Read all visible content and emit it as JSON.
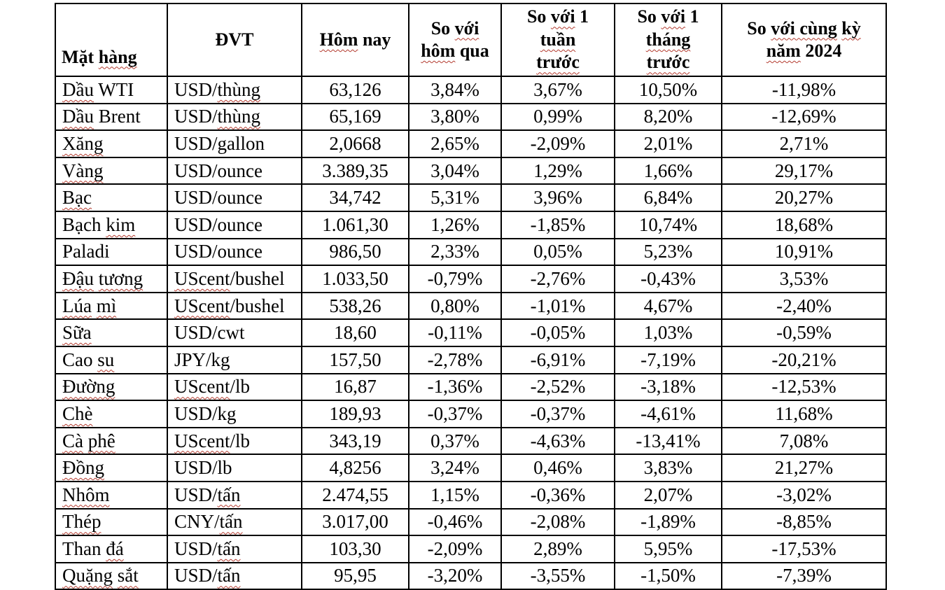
{
  "colors": {
    "squiggle": "#b33a2e",
    "text": "#000000",
    "grid": "#000000",
    "background": "#ffffff"
  },
  "table": {
    "columns": [
      {
        "id": "name",
        "label_text": "Mặt hàng",
        "segments": [
          [
            "Mặt ",
            false
          ],
          [
            "hàng",
            true
          ]
        ]
      },
      {
        "id": "unit",
        "label_text": "ĐVT",
        "segments": [
          [
            "ĐVT",
            false
          ]
        ]
      },
      {
        "id": "today",
        "label_text": "Hôm nay",
        "segments": [
          [
            "Hôm",
            true
          ],
          [
            " nay",
            false
          ]
        ]
      },
      {
        "id": "vs_yesterday",
        "label_text": "So với hôm qua",
        "segments": [
          [
            "So ",
            false
          ],
          [
            "với",
            true
          ],
          [
            "\n",
            false
          ],
          [
            "hôm",
            true
          ],
          [
            " qua",
            false
          ]
        ]
      },
      {
        "id": "vs_week",
        "label_text": "So với 1 tuần trước",
        "segments": [
          [
            "So ",
            false
          ],
          [
            "với",
            true
          ],
          [
            " 1",
            false
          ],
          [
            "\n",
            false
          ],
          [
            "tuần",
            true
          ],
          [
            "\n",
            false
          ],
          [
            "trước",
            true
          ]
        ]
      },
      {
        "id": "vs_month",
        "label_text": "So với 1 tháng trước",
        "segments": [
          [
            "So ",
            false
          ],
          [
            "với",
            true
          ],
          [
            " 1",
            false
          ],
          [
            "\n",
            false
          ],
          [
            "tháng",
            true
          ],
          [
            "\n",
            false
          ],
          [
            "trước",
            true
          ]
        ]
      },
      {
        "id": "vs_2024",
        "label_text": "So với cùng kỳ năm 2024",
        "segments": [
          [
            "So ",
            false
          ],
          [
            "với cùng",
            true
          ],
          [
            " ",
            false
          ],
          [
            "kỳ",
            true
          ],
          [
            "\n",
            false
          ],
          [
            "năm",
            true
          ],
          [
            " 2024",
            false
          ]
        ]
      }
    ],
    "rows": [
      {
        "name_text": "Dầu WTI",
        "name": [
          [
            "Dầu",
            true
          ],
          [
            " WTI",
            false
          ]
        ],
        "unit_text": "USD/thùng",
        "unit": [
          [
            "USD/",
            false
          ],
          [
            "thùng",
            true
          ]
        ],
        "values": [
          "63,126",
          "3,84%",
          "3,67%",
          "10,50%",
          "-11,98%"
        ]
      },
      {
        "name_text": "Dầu Brent",
        "name": [
          [
            "Dầu",
            true
          ],
          [
            " Brent",
            false
          ]
        ],
        "unit_text": "USD/thùng",
        "unit": [
          [
            "USD/",
            false
          ],
          [
            "thùng",
            true
          ]
        ],
        "values": [
          "65,169",
          "3,80%",
          "0,99%",
          "8,20%",
          "-12,69%"
        ]
      },
      {
        "name_text": "Xăng",
        "name": [
          [
            "Xăng",
            true
          ]
        ],
        "unit_text": "USD/gallon",
        "unit": [
          [
            "USD/gallon",
            false
          ]
        ],
        "values": [
          "2,0668",
          "2,65%",
          "-2,09%",
          "2,01%",
          "2,71%"
        ]
      },
      {
        "name_text": "Vàng",
        "name": [
          [
            "Vàng",
            true
          ]
        ],
        "unit_text": "USD/ounce",
        "unit": [
          [
            "USD/ounce",
            false
          ]
        ],
        "values": [
          "3.389,35",
          "3,04%",
          "1,29%",
          "1,66%",
          "29,17%"
        ]
      },
      {
        "name_text": "Bạc",
        "name": [
          [
            "Bạc",
            true
          ]
        ],
        "unit_text": "USD/ounce",
        "unit": [
          [
            "USD/ounce",
            false
          ]
        ],
        "values": [
          "34,742",
          "5,31%",
          "3,96%",
          "6,84%",
          "20,27%"
        ]
      },
      {
        "name_text": "Bạch kim",
        "name": [
          [
            "Bạch ",
            false
          ],
          [
            "kim",
            true
          ]
        ],
        "unit_text": "USD/ounce",
        "unit": [
          [
            "USD/ounce",
            false
          ]
        ],
        "values": [
          "1.061,30",
          "1,26%",
          "-1,85%",
          "10,74%",
          "18,68%"
        ]
      },
      {
        "name_text": "Paladi",
        "name": [
          [
            "Paladi",
            false
          ]
        ],
        "unit_text": "USD/ounce",
        "unit": [
          [
            "USD/ounce",
            false
          ]
        ],
        "values": [
          "986,50",
          "2,33%",
          "0,05%",
          "5,23%",
          "10,91%"
        ]
      },
      {
        "name_text": "Đậu tương",
        "name": [
          [
            "Đậu",
            true
          ],
          [
            " ",
            false
          ],
          [
            "tương",
            true
          ]
        ],
        "unit_text": "UScent/bushel",
        "unit": [
          [
            "UScent",
            true
          ],
          [
            "/bushel",
            false
          ]
        ],
        "values": [
          "1.033,50",
          "-0,79%",
          "-2,76%",
          "-0,43%",
          "3,53%"
        ]
      },
      {
        "name_text": "Lúa mì",
        "name": [
          [
            "Lúa",
            true
          ],
          [
            " ",
            false
          ],
          [
            "mì",
            true
          ]
        ],
        "unit_text": "UScent/bushel",
        "unit": [
          [
            "UScent",
            true
          ],
          [
            "/bushel",
            false
          ]
        ],
        "values": [
          "538,26",
          "0,80%",
          "-1,01%",
          "4,67%",
          "-2,40%"
        ]
      },
      {
        "name_text": "Sữa",
        "name": [
          [
            "Sữa",
            true
          ]
        ],
        "unit_text": "USD/cwt",
        "unit": [
          [
            "USD/cwt",
            false
          ]
        ],
        "values": [
          "18,60",
          "-0,11%",
          "-0,05%",
          "1,03%",
          "-0,59%"
        ]
      },
      {
        "name_text": "Cao su",
        "name": [
          [
            "Cao ",
            false
          ],
          [
            "su",
            true
          ]
        ],
        "unit_text": "JPY/kg",
        "unit": [
          [
            "JPY/kg",
            false
          ]
        ],
        "values": [
          "157,50",
          "-2,78%",
          "-6,91%",
          "-7,19%",
          "-20,21%"
        ]
      },
      {
        "name_text": "Đường",
        "name": [
          [
            "Đường",
            true
          ]
        ],
        "unit_text": "UScent/lb",
        "unit": [
          [
            "UScent",
            true
          ],
          [
            "/lb",
            false
          ]
        ],
        "values": [
          "16,87",
          "-1,36%",
          "-2,52%",
          "-3,18%",
          "-12,53%"
        ]
      },
      {
        "name_text": "Chè",
        "name": [
          [
            "Chè",
            true
          ]
        ],
        "unit_text": "USD/kg",
        "unit": [
          [
            "USD/kg",
            false
          ]
        ],
        "values": [
          "189,93",
          "-0,37%",
          "-0,37%",
          "-4,61%",
          "11,68%"
        ]
      },
      {
        "name_text": "Cà phê",
        "name": [
          [
            "Cà",
            true
          ],
          [
            " ",
            false
          ],
          [
            "phê",
            true
          ]
        ],
        "unit_text": "UScent/lb",
        "unit": [
          [
            "UScent",
            true
          ],
          [
            "/lb",
            false
          ]
        ],
        "values": [
          "343,19",
          "0,37%",
          "-4,63%",
          "-13,41%",
          "7,08%"
        ]
      },
      {
        "name_text": "Đồng",
        "name": [
          [
            "Đồng",
            true
          ]
        ],
        "unit_text": "USD/lb",
        "unit": [
          [
            "USD/lb",
            false
          ]
        ],
        "values": [
          "4,8256",
          "3,24%",
          "0,46%",
          "3,83%",
          "21,27%"
        ]
      },
      {
        "name_text": "Nhôm",
        "name": [
          [
            "Nhôm",
            true
          ]
        ],
        "unit_text": "USD/tấn",
        "unit": [
          [
            "USD/",
            false
          ],
          [
            "tấn",
            true
          ]
        ],
        "values": [
          "2.474,55",
          "1,15%",
          "-0,36%",
          "2,07%",
          "-3,02%"
        ]
      },
      {
        "name_text": "Thép",
        "name": [
          [
            "Thép",
            true
          ]
        ],
        "unit_text": "CNY/tấn",
        "unit": [
          [
            "CNY/",
            false
          ],
          [
            "tấn",
            true
          ]
        ],
        "values": [
          "3.017,00",
          "-0,46%",
          "-2,08%",
          "-1,89%",
          "-8,85%"
        ]
      },
      {
        "name_text": "Than đá",
        "name": [
          [
            "Than ",
            false
          ],
          [
            "đá",
            true
          ]
        ],
        "unit_text": "USD/tấn",
        "unit": [
          [
            "USD/",
            false
          ],
          [
            "tấn",
            true
          ]
        ],
        "values": [
          "103,30",
          "-2,09%",
          "2,89%",
          "5,95%",
          "-17,53%"
        ]
      },
      {
        "name_text": "Quặng sắt",
        "name": [
          [
            "Quặng",
            true
          ],
          [
            " ",
            false
          ],
          [
            "sắt",
            true
          ]
        ],
        "unit_text": "USD/tấn",
        "unit": [
          [
            "USD/",
            false
          ],
          [
            "tấn",
            true
          ]
        ],
        "values": [
          "95,95",
          "-3,20%",
          "-3,55%",
          "-1,50%",
          "-7,39%"
        ]
      }
    ]
  }
}
